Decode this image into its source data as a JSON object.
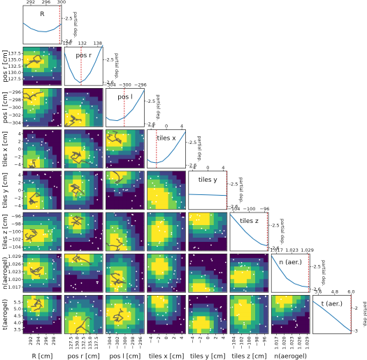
{
  "chart_data": {
    "type": "corner-plot",
    "variables": [
      {
        "key": "R",
        "title": "R",
        "axis_label": "R [cm]",
        "range": [
          290,
          300
        ],
        "ticks": [
          292,
          296,
          300
        ],
        "tick_labels": [
          "292",
          "296",
          "300"
        ],
        "bottom_ticks": [
          "292",
          "294",
          "296",
          "298"
        ],
        "bottom_tick_values": [
          292,
          294,
          296,
          298
        ],
        "best": 299.5,
        "pd_ticks": [
          "-2.5",
          "-2.6"
        ],
        "pd_range": [
          -2.63,
          -2.42
        ],
        "pd_curve": [
          [
            290,
            -2.515
          ],
          [
            292,
            -2.545
          ],
          [
            294,
            -2.56
          ],
          [
            296,
            -2.563
          ],
          [
            298,
            -2.55
          ],
          [
            300,
            -2.52
          ]
        ]
      },
      {
        "key": "pos_r",
        "title": "pos r",
        "axis_label": "pos r [cm]",
        "range": [
          125,
          140
        ],
        "ticks": [
          126,
          132,
          138
        ],
        "tick_labels": [
          "126",
          "132",
          "138"
        ],
        "left_ticks": [
          "137.5",
          "135.0",
          "132.5",
          "130.0",
          "127.5"
        ],
        "left_tick_values": [
          137.5,
          135,
          132.5,
          130,
          127.5
        ],
        "bottom_ticks": [
          "127.5",
          "130.0",
          "132.5",
          "135.0",
          "137.5"
        ],
        "bottom_tick_values": [
          127.5,
          130,
          132.5,
          135,
          137.5
        ],
        "best": 131.5,
        "pd_ticks": [
          "-2.5",
          "-2.6"
        ],
        "pd_range": [
          -2.62,
          -2.42
        ],
        "pd_curve": [
          [
            125,
            -2.45
          ],
          [
            127,
            -2.53
          ],
          [
            129,
            -2.585
          ],
          [
            131,
            -2.605
          ],
          [
            133,
            -2.59
          ],
          [
            135,
            -2.555
          ],
          [
            137,
            -2.5
          ],
          [
            139,
            -2.435
          ],
          [
            140,
            -2.41
          ]
        ]
      },
      {
        "key": "pos_l",
        "title": "pos l",
        "axis_label": "pos l [cm]",
        "range": [
          -305,
          -295
        ],
        "ticks": [
          -304,
          -300,
          -296
        ],
        "tick_labels": [
          "−304",
          "−300",
          "−296"
        ],
        "left_ticks": [
          "−296",
          "−298",
          "−300",
          "−302",
          "−304"
        ],
        "left_tick_values": [
          -296,
          -298,
          -300,
          -302,
          -304
        ],
        "bottom_ticks": [
          "−304",
          "−302",
          "−300",
          "−298",
          "−296"
        ],
        "bottom_tick_values": [
          -304,
          -302,
          -300,
          -298,
          -296
        ],
        "best": -300.2,
        "pd_ticks": [
          "-2.5",
          "-2.6"
        ],
        "pd_range": [
          -2.64,
          -2.42
        ],
        "pd_curve": [
          [
            -305,
            -2.585
          ],
          [
            -304,
            -2.6
          ],
          [
            -302,
            -2.605
          ],
          [
            -300,
            -2.585
          ],
          [
            -298,
            -2.54
          ],
          [
            -296,
            -2.47
          ],
          [
            -295,
            -2.43
          ]
        ]
      },
      {
        "key": "tiles_x",
        "title": "tiles x",
        "axis_label": "tiles x [cm]",
        "range": [
          -5,
          5
        ],
        "ticks": [
          -4,
          0,
          4
        ],
        "tick_labels": [
          "−4",
          "0",
          "4"
        ],
        "left_ticks": [
          "4",
          "2",
          "0",
          "−2",
          "−4"
        ],
        "left_tick_values": [
          4,
          2,
          0,
          -2,
          -4
        ],
        "bottom_ticks": [
          "−4",
          "−2",
          "0",
          "2",
          "4"
        ],
        "bottom_tick_values": [
          -4,
          -2,
          0,
          2,
          4
        ],
        "best": -2.6,
        "pd_ticks": [
          "-2.5",
          "-2.6"
        ],
        "pd_range": [
          -2.64,
          -2.42
        ],
        "pd_curve": [
          [
            -5,
            -2.59
          ],
          [
            -4,
            -2.605
          ],
          [
            -2.5,
            -2.61
          ],
          [
            -1,
            -2.6
          ],
          [
            0.5,
            -2.57
          ],
          [
            2,
            -2.53
          ],
          [
            3.5,
            -2.48
          ],
          [
            5,
            -2.43
          ]
        ]
      },
      {
        "key": "tiles_y",
        "title": "tiles y",
        "axis_label": "tiles y [cm]",
        "range": [
          -5,
          5
        ],
        "ticks": [
          -4,
          0,
          4
        ],
        "tick_labels": [
          "−4",
          "0",
          "4"
        ],
        "left_ticks": [
          "4",
          "2",
          "0",
          "−2",
          "−4"
        ],
        "left_tick_values": [
          4,
          2,
          0,
          -2,
          -4
        ],
        "bottom_ticks": [
          "−4",
          "−2",
          "0",
          "2",
          "4"
        ],
        "bottom_tick_values": [
          -4,
          -2,
          0,
          2,
          4
        ],
        "best": 4.9,
        "pd_ticks": [
          "-2.5",
          "-2.6"
        ],
        "pd_range": [
          -2.64,
          -2.42
        ],
        "pd_curve": [
          [
            -5,
            -2.553
          ],
          [
            0,
            -2.556
          ],
          [
            5,
            -2.56
          ]
        ]
      },
      {
        "key": "tiles_z",
        "title": "tiles z",
        "axis_label": "tiles z [cm]",
        "range": [
          -105,
          -95
        ],
        "ticks": [
          -104,
          -100,
          -96
        ],
        "tick_labels": [
          "−104",
          "−100",
          "−96"
        ],
        "left_ticks": [
          "−96",
          "−98",
          "−100",
          "−102",
          "−104"
        ],
        "left_tick_values": [
          -96,
          -98,
          -100,
          -102,
          -104
        ],
        "bottom_ticks": [
          "−104",
          "−102",
          "−100",
          "−98",
          "−96"
        ],
        "bottom_tick_values": [
          -104,
          -102,
          -100,
          -98,
          -96
        ],
        "best": -95.3,
        "pd_ticks": [
          "-2.5",
          "-2.6"
        ],
        "pd_range": [
          -2.64,
          -2.42
        ],
        "pd_curve": [
          [
            -105,
            -2.43
          ],
          [
            -103,
            -2.48
          ],
          [
            -101,
            -2.53
          ],
          [
            -99,
            -2.57
          ],
          [
            -97,
            -2.6
          ],
          [
            -95.5,
            -2.61
          ],
          [
            -95,
            -2.6
          ]
        ]
      },
      {
        "key": "n_aerogel",
        "title": "n (aer.)",
        "axis_label": "n(aerogel)",
        "range": [
          1.015,
          1.03
        ],
        "ticks": [
          1.017,
          1.023,
          1.029
        ],
        "tick_labels": [
          "1.017",
          "1.023",
          "1.029"
        ],
        "left_ticks": [
          "1.029",
          "1.026",
          "1.023",
          "1.020",
          "1.017"
        ],
        "left_tick_values": [
          1.029,
          1.026,
          1.023,
          1.02,
          1.017
        ],
        "bottom_ticks": [
          "1.017",
          "1.020",
          "1.023",
          "1.026",
          "1.029"
        ],
        "bottom_tick_values": [
          1.017,
          1.02,
          1.023,
          1.026,
          1.029
        ],
        "best": 1.0295,
        "pd_ticks": [
          "-2.5",
          "-2.6"
        ],
        "pd_range": [
          -2.64,
          -2.42
        ],
        "pd_curve": [
          [
            1.015,
            -2.43
          ],
          [
            1.018,
            -2.5
          ],
          [
            1.021,
            -2.56
          ],
          [
            1.024,
            -2.59
          ],
          [
            1.027,
            -2.605
          ],
          [
            1.03,
            -2.61
          ]
        ]
      },
      {
        "key": "t_aerogel",
        "title": "t (aer.)",
        "axis_label": "t(aerogel)",
        "range": [
          3.2,
          6.0
        ],
        "ticks": [
          3.6,
          4.8,
          6.0
        ],
        "tick_labels": [
          "3.6",
          "4.8",
          "6.0"
        ],
        "left_ticks": [
          "5.5",
          "5.0",
          "4.5",
          "4.0",
          "3.5"
        ],
        "left_tick_values": [
          5.5,
          5,
          4.5,
          4,
          3.5
        ],
        "best": 5.98,
        "pd_ticks": [
          "-2",
          "-3"
        ],
        "pd_range": [
          -3.1,
          -1.8
        ],
        "pd_curve": [
          [
            3.2,
            -2.0
          ],
          [
            3.8,
            -2.2
          ],
          [
            4.4,
            -2.42
          ],
          [
            5.0,
            -2.65
          ],
          [
            5.5,
            -2.85
          ],
          [
            6.0,
            -3.02
          ]
        ]
      }
    ],
    "diagonal_ylabel": "partial dep.",
    "offdiagonal": "contour",
    "colormap": [
      "#440154",
      "#414487",
      "#2a788e",
      "#22a884",
      "#7ad151",
      "#fde725"
    ],
    "curve_color": "#1f77b4",
    "best_line_color": "#d62728",
    "samples_color": "#ffffff",
    "path_color": "#555555",
    "grid": false
  }
}
